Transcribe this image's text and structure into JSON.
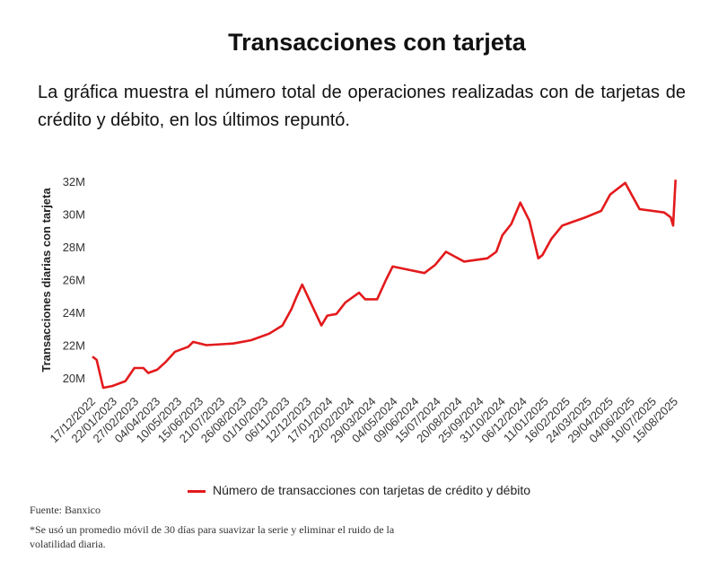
{
  "header": {
    "title": "Transacciones con tarjeta",
    "subtitle": "La gráfica muestra el número total de operaciones realizadas con de tarjetas de crédito y débito, en los últimos repuntó."
  },
  "chart_data": {
    "type": "line",
    "title": "Transacciones con tarjeta",
    "ylabel": "Transacciones diarias con tarjeta",
    "xlabel": "",
    "y_unit": "millones",
    "ylim": [
      19,
      32.5
    ],
    "yticks": [
      20,
      22,
      24,
      26,
      28,
      30,
      32
    ],
    "ytick_labels": [
      "20M",
      "22M",
      "24M",
      "26M",
      "28M",
      "30M",
      "32M"
    ],
    "xtick_labels": [
      "17/12/2022",
      "22/01/2023",
      "27/02/2023",
      "04/04/2023",
      "10/05/2023",
      "15/06/2023",
      "21/07/2023",
      "26/08/2023",
      "01/10/2023",
      "06/11/2023",
      "12/12/2023",
      "17/01/2024",
      "22/02/2024",
      "29/03/2024",
      "04/05/2024",
      "09/06/2024",
      "15/07/2024",
      "20/08/2024",
      "25/09/2024",
      "31/10/2024",
      "06/12/2024",
      "11/01/2025",
      "16/02/2025",
      "24/03/2025",
      "29/04/2025",
      "04/06/2025",
      "10/07/2025",
      "15/08/2025"
    ],
    "grid": false,
    "legend_position": "bottom",
    "series": [
      {
        "name": "Número de transacciones con tarjetas de crédito y débito",
        "color": "#e31a1c",
        "points": [
          [
            "2022-12-17",
            21.3
          ],
          [
            "2022-12-24",
            21.1
          ],
          [
            "2023-01-04",
            19.4
          ],
          [
            "2023-01-19",
            19.5
          ],
          [
            "2023-02-10",
            19.8
          ],
          [
            "2023-02-25",
            20.6
          ],
          [
            "2023-03-12",
            20.6
          ],
          [
            "2023-03-20",
            20.3
          ],
          [
            "2023-04-04",
            20.5
          ],
          [
            "2023-04-19",
            21.0
          ],
          [
            "2023-05-04",
            21.6
          ],
          [
            "2023-05-26",
            21.9
          ],
          [
            "2023-06-03",
            22.2
          ],
          [
            "2023-06-25",
            22.0
          ],
          [
            "2023-08-09",
            22.1
          ],
          [
            "2023-09-08",
            22.3
          ],
          [
            "2023-10-08",
            22.7
          ],
          [
            "2023-10-30",
            23.2
          ],
          [
            "2023-11-14",
            24.2
          ],
          [
            "2023-11-22",
            24.9
          ],
          [
            "2023-12-02",
            25.7
          ],
          [
            "2023-12-11",
            25.0
          ],
          [
            "2023-12-25",
            23.9
          ],
          [
            "2024-01-03",
            23.2
          ],
          [
            "2024-01-13",
            23.8
          ],
          [
            "2024-01-28",
            23.9
          ],
          [
            "2024-02-12",
            24.6
          ],
          [
            "2024-03-06",
            25.2
          ],
          [
            "2024-03-16",
            24.8
          ],
          [
            "2024-04-05",
            24.8
          ],
          [
            "2024-04-20",
            26.0
          ],
          [
            "2024-05-01",
            26.8
          ],
          [
            "2024-05-27",
            26.6
          ],
          [
            "2024-06-23",
            26.4
          ],
          [
            "2024-07-11",
            26.9
          ],
          [
            "2024-07-29",
            27.7
          ],
          [
            "2024-08-28",
            27.1
          ],
          [
            "2024-10-06",
            27.3
          ],
          [
            "2024-10-21",
            27.7
          ],
          [
            "2024-10-31",
            28.7
          ],
          [
            "2024-11-15",
            29.4
          ],
          [
            "2024-11-30",
            30.7
          ],
          [
            "2024-12-15",
            29.6
          ],
          [
            "2024-12-30",
            27.3
          ],
          [
            "2025-01-06",
            27.5
          ],
          [
            "2025-01-21",
            28.5
          ],
          [
            "2025-02-08",
            29.3
          ],
          [
            "2025-03-19",
            29.8
          ],
          [
            "2025-04-14",
            30.2
          ],
          [
            "2025-04-29",
            31.2
          ],
          [
            "2025-05-24",
            31.9
          ],
          [
            "2025-06-17",
            30.3
          ],
          [
            "2025-07-28",
            30.1
          ],
          [
            "2025-08-08",
            29.8
          ],
          [
            "2025-08-12",
            29.3
          ],
          [
            "2025-08-16",
            32.1
          ]
        ]
      }
    ]
  },
  "legend": {
    "label": "Número de transacciones con tarjetas de crédito y débito",
    "color": "#e31a1c"
  },
  "footer": {
    "source": "Fuente: Banxico",
    "note_line1": "*Se usó un promedio móvil de 30 días para suavizar la serie y eliminar el ruido de la",
    "note_line2": "volatilidad diaria."
  }
}
